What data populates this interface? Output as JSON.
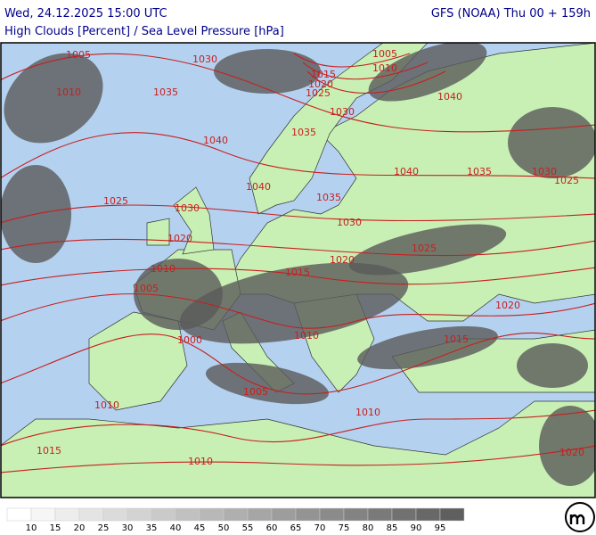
{
  "header": {
    "left_title": "Wed, 24.12.2025 15:00 UTC",
    "right_title": "GFS (NOAA) Thu 00 + 159h",
    "subtitle": "High Clouds [Percent] / Sea Level Pressure [hPa]"
  },
  "isobar_labels": [
    "1005",
    "1030",
    "1005",
    "1010",
    "1015",
    "1020",
    "1025",
    "1010",
    "1035",
    "1040",
    "1030",
    "1035",
    "1040",
    "1040",
    "1035",
    "1030",
    "1025",
    "1040",
    "1035",
    "1025",
    "1030",
    "1030",
    "1020",
    "1025",
    "1020",
    "1010",
    "1015",
    "1005",
    "1020",
    "1010",
    "1015",
    "1000",
    "1005",
    "1010",
    "1010",
    "1015",
    "1010",
    "1020"
  ],
  "legend": {
    "labels": [
      "10",
      "15",
      "20",
      "25",
      "30",
      "35",
      "40",
      "45",
      "50",
      "55",
      "60",
      "65",
      "70",
      "75",
      "80",
      "85",
      "90",
      "95"
    ]
  }
}
